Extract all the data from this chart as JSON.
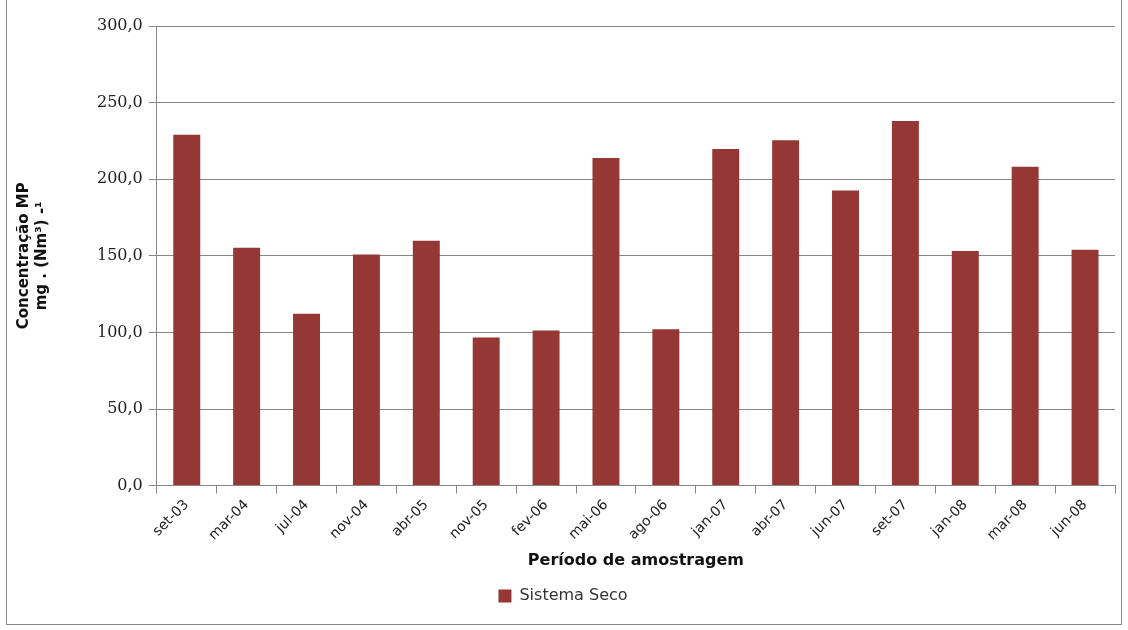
{
  "chart_data": {
    "type": "bar",
    "categories": [
      "set-03",
      "mar-04",
      "jul-04",
      "nov-04",
      "abr-05",
      "nov-05",
      "fev-06",
      "mai-06",
      "ago-06",
      "jan-07",
      "abr-07",
      "jun-07",
      "set-07",
      "jan-08",
      "mar-08",
      "jun-08"
    ],
    "series": [
      {
        "name": "Sistema Seco",
        "color": "#953735",
        "values": [
          229.0,
          155.3,
          112.1,
          150.8,
          159.8,
          96.7,
          101.2,
          213.9,
          102.0,
          219.7,
          225.5,
          192.7,
          238.0,
          153.2,
          208.1,
          154.0
        ]
      }
    ],
    "xlabel": "Período de amostragem",
    "ylabel": "Concentração MP\nmg . (Nm³) -¹",
    "ylim": [
      0,
      300
    ],
    "yticks": [
      {
        "value": 0,
        "label": "0,0"
      },
      {
        "value": 50,
        "label": "50,0"
      },
      {
        "value": 100,
        "label": "100,0"
      },
      {
        "value": 150,
        "label": "150,0"
      },
      {
        "value": 200,
        "label": "200,0"
      },
      {
        "value": 250,
        "label": "250,0"
      },
      {
        "value": 300,
        "label": "300,0"
      }
    ],
    "grid": "y",
    "legend": "bottom"
  }
}
